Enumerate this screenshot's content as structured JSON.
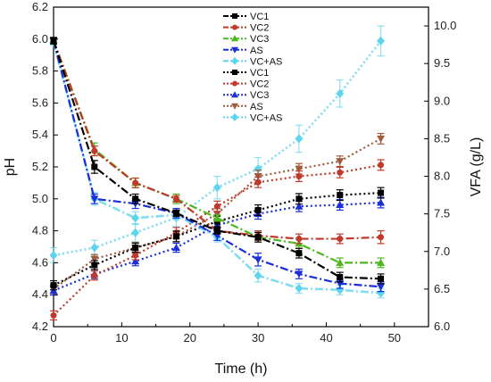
{
  "chart_data": {
    "type": "line",
    "xlabel": "Time (h)",
    "ylabel_left": "pH",
    "ylabel_right": "VFA (g/L)",
    "xlim": [
      0,
      55
    ],
    "ylim_left": [
      4.2,
      6.2
    ],
    "ylim_right": [
      6.0,
      10.25
    ],
    "xticks": [
      0,
      10,
      20,
      30,
      40,
      50
    ],
    "yticks_left": [
      4.2,
      4.4,
      4.6,
      4.8,
      5.0,
      5.2,
      5.4,
      5.6,
      5.8,
      6.0,
      6.2
    ],
    "yticks_right": [
      6.0,
      6.5,
      7.0,
      7.5,
      8.0,
      8.5,
      9.0,
      9.5,
      10.0
    ],
    "legend_position": "top-center",
    "x": [
      0,
      6,
      12,
      18,
      24,
      30,
      36,
      42,
      48
    ],
    "series": [
      {
        "name": "VC1",
        "axis": "left",
        "style": "dashdot",
        "marker": "square",
        "color": "#000000",
        "values": [
          5.99,
          5.2,
          5.0,
          4.91,
          4.8,
          4.76,
          4.66,
          4.51,
          4.5
        ],
        "errors": [
          0.02,
          0.04,
          0.03,
          0.02,
          0.02,
          0.03,
          0.03,
          0.03,
          0.03
        ]
      },
      {
        "name": "VC2",
        "axis": "left",
        "style": "dashdot",
        "marker": "circle",
        "color": "#c0392b",
        "values": [
          5.99,
          5.3,
          5.1,
          5.0,
          4.8,
          4.77,
          4.75,
          4.75,
          4.76
        ],
        "errors": [
          0.02,
          0.03,
          0.03,
          0.02,
          0.02,
          0.03,
          0.03,
          0.03,
          0.04
        ]
      },
      {
        "name": "VC3",
        "axis": "left",
        "style": "dashdot",
        "marker": "triangle-up",
        "color": "#4db81e",
        "values": [
          5.99,
          5.31,
          5.1,
          5.0,
          4.88,
          4.76,
          4.72,
          4.6,
          4.6
        ],
        "errors": [
          0.02,
          0.04,
          0.03,
          0.03,
          0.02,
          0.03,
          0.03,
          0.03,
          0.03
        ]
      },
      {
        "name": "AS",
        "axis": "left",
        "style": "dashdot",
        "marker": "triangle-down",
        "color": "#1a2ed9",
        "values": [
          5.99,
          5.0,
          4.97,
          4.91,
          4.77,
          4.62,
          4.53,
          4.47,
          4.45
        ],
        "errors": [
          0.02,
          0.03,
          0.03,
          0.03,
          0.03,
          0.04,
          0.03,
          0.03,
          0.03
        ]
      },
      {
        "name": "VC+AS",
        "axis": "left",
        "style": "dashdot",
        "marker": "diamond",
        "color": "#5fd4ee",
        "values": [
          5.98,
          5.0,
          4.88,
          4.9,
          4.76,
          4.52,
          4.44,
          4.43,
          4.41
        ],
        "errors": [
          0.02,
          0.04,
          0.04,
          0.03,
          0.03,
          0.04,
          0.03,
          0.03,
          0.03
        ]
      },
      {
        "name": "VC1",
        "axis": "right",
        "style": "dotted",
        "marker": "square",
        "color": "#000000",
        "values": [
          6.55,
          6.82,
          7.05,
          7.2,
          7.4,
          7.55,
          7.7,
          7.75,
          7.78
        ],
        "errors": [
          0.06,
          0.06,
          0.06,
          0.07,
          0.07,
          0.07,
          0.07,
          0.07,
          0.07
        ]
      },
      {
        "name": "VC2",
        "axis": "right",
        "style": "dotted",
        "marker": "circle",
        "color": "#c0392b",
        "values": [
          6.15,
          6.68,
          6.95,
          7.25,
          7.6,
          7.92,
          8.0,
          8.05,
          8.15
        ],
        "errors": [
          0.06,
          0.06,
          0.06,
          0.07,
          0.07,
          0.07,
          0.07,
          0.07,
          0.07
        ]
      },
      {
        "name": "VC3",
        "axis": "right",
        "style": "dotted",
        "marker": "triangle-up",
        "color": "#1a2ed9",
        "values": [
          6.48,
          6.7,
          6.87,
          7.05,
          7.35,
          7.5,
          7.6,
          7.62,
          7.65
        ],
        "errors": [
          0.06,
          0.06,
          0.06,
          0.06,
          0.07,
          0.07,
          0.07,
          0.07,
          0.07
        ]
      },
      {
        "name": "AS",
        "axis": "right",
        "style": "dotted",
        "marker": "triangle-down",
        "color": "#a05a3c",
        "values": [
          6.5,
          6.9,
          7.05,
          7.2,
          7.5,
          8.0,
          8.1,
          8.2,
          8.5
        ],
        "errors": [
          0.06,
          0.06,
          0.07,
          0.07,
          0.07,
          0.08,
          0.07,
          0.07,
          0.07
        ]
      },
      {
        "name": "VC+AS",
        "axis": "right",
        "style": "dotted",
        "marker": "diamond",
        "color": "#5fd4ee",
        "values": [
          6.95,
          7.05,
          7.25,
          7.45,
          7.85,
          8.1,
          8.5,
          9.1,
          9.8
        ],
        "errors": [
          0.1,
          0.1,
          0.12,
          0.12,
          0.15,
          0.15,
          0.18,
          0.18,
          0.2
        ]
      }
    ]
  }
}
